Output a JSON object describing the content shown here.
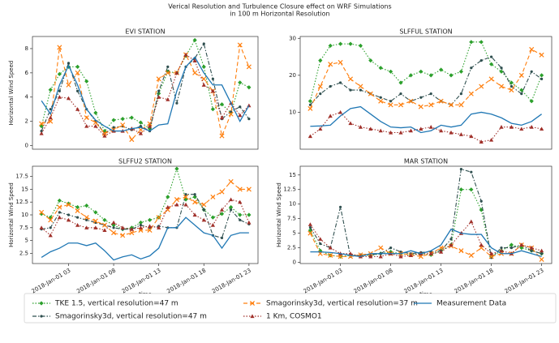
{
  "title": "Verical Resolution and Turbulence Closure effect on WRF Simulations",
  "subtitle": "in 100 m Horizontal Resolution",
  "chart_data": [
    {
      "type": "line",
      "title": "EVI STATION",
      "ylabel": "Horizontal Wind Speed",
      "x": [
        0,
        1,
        2,
        3,
        4,
        5,
        6,
        7,
        8,
        9,
        10,
        11,
        12,
        13,
        14,
        15,
        16,
        17,
        18,
        19,
        20,
        21,
        22,
        23
      ],
      "xlim": [
        -1,
        24
      ],
      "ylim": [
        -0.3,
        9
      ],
      "yticks": [
        0,
        2,
        4,
        6,
        8
      ],
      "series": [
        {
          "name": "TKE 1.5, vertical resolution=47 m",
          "color": "#2ca02c",
          "linestyle": "dotted",
          "marker": "diamond",
          "values": [
            1.6,
            4.6,
            5.9,
            6.5,
            6.5,
            5.3,
            2.7,
            1.2,
            2.1,
            2.2,
            2.3,
            1.9,
            1.4,
            4.3,
            6.1,
            6.0,
            7.4,
            8.7,
            6.5,
            3.0,
            3.4,
            2.7,
            5.2,
            4.8
          ]
        },
        {
          "name": "Smagorinsky3d, vertical resolution=47 m",
          "color": "#2f4f4f",
          "linestyle": "dashdot",
          "marker": "star",
          "values": [
            1.2,
            3.0,
            4.5,
            6.8,
            4.5,
            3.0,
            2.0,
            1.0,
            1.5,
            1.6,
            1.3,
            1.6,
            1.2,
            4.5,
            6.5,
            3.5,
            6.5,
            7.2,
            8.4,
            5.5,
            2.2,
            2.8,
            3.2,
            2.2
          ]
        },
        {
          "name": "Smagorinsky3d, vertical resolution=37 m",
          "color": "#ff7f0e",
          "linestyle": "dashed",
          "marker": "x",
          "values": [
            1.8,
            2.0,
            8.1,
            5.0,
            6.0,
            2.3,
            1.9,
            1.0,
            1.3,
            1.7,
            0.5,
            1.3,
            1.8,
            5.5,
            6.0,
            6.0,
            7.5,
            6.0,
            5.5,
            4.5,
            0.8,
            2.6,
            8.3,
            6.5
          ]
        },
        {
          "name": "1 Km, COSMO1",
          "color": "#a0302a",
          "linestyle": "dotted",
          "marker": "triangle",
          "values": [
            1.0,
            2.3,
            4.0,
            3.9,
            3.0,
            1.6,
            1.6,
            0.8,
            1.2,
            1.2,
            1.4,
            1.0,
            1.6,
            4.0,
            3.8,
            6.0,
            7.5,
            7.0,
            5.0,
            4.5,
            2.3,
            3.5,
            2.5,
            3.3
          ]
        },
        {
          "name": "Measurement Data",
          "color": "#1f77b4",
          "linestyle": "solid",
          "marker": "none",
          "values": [
            3.7,
            2.6,
            5.0,
            6.6,
            5.0,
            3.0,
            2.1,
            1.6,
            1.2,
            1.2,
            1.4,
            1.5,
            1.2,
            1.7,
            1.8,
            4.5,
            6.5,
            7.3,
            6.0,
            5.0,
            5.0,
            3.5,
            2.0,
            3.3
          ]
        }
      ]
    },
    {
      "type": "line",
      "title": "SLFFUL STATION",
      "x": [
        0,
        1,
        2,
        3,
        4,
        5,
        6,
        7,
        8,
        9,
        10,
        11,
        12,
        13,
        14,
        15,
        16,
        17,
        18,
        19,
        20,
        21,
        22,
        23
      ],
      "xlim": [
        -1,
        24
      ],
      "ylim": [
        0,
        30.5
      ],
      "yticks": [
        10,
        20,
        30
      ],
      "series": [
        {
          "name": "TKE 1.5, vertical resolution=47 m",
          "color": "#2ca02c",
          "linestyle": "dotted",
          "marker": "diamond",
          "values": [
            13,
            24,
            28,
            28.5,
            28.5,
            28,
            24,
            22,
            21,
            18,
            20,
            21,
            20,
            21.5,
            20,
            21,
            29,
            29,
            23,
            21,
            18,
            16,
            13,
            20
          ]
        },
        {
          "name": "Smagorinsky3d, vertical resolution=47 m",
          "color": "#2f4f4f",
          "linestyle": "dashdot",
          "marker": "star",
          "values": [
            12,
            15,
            17,
            18,
            16,
            16,
            15,
            14,
            13,
            15,
            13,
            14,
            15,
            13,
            12,
            15,
            22,
            24,
            25,
            22,
            17,
            15,
            21,
            19
          ]
        },
        {
          "name": "Smagorinsky3d, vertical resolution=37 m",
          "color": "#ff7f0e",
          "linestyle": "dashed",
          "marker": "x",
          "values": [
            11,
            17,
            23,
            23.5,
            19,
            17,
            15,
            13,
            12,
            12,
            13,
            11.5,
            12,
            13,
            12,
            12,
            15,
            17,
            19,
            17,
            16,
            20,
            27,
            25.5
          ]
        },
        {
          "name": "1 Km, COSMO1",
          "color": "#a0302a",
          "linestyle": "dotted",
          "marker": "triangle",
          "values": [
            3.5,
            5.5,
            9,
            10,
            7,
            6,
            5.5,
            5,
            4.5,
            4.5,
            5,
            5.5,
            6,
            5,
            4.5,
            4,
            3.5,
            2,
            2.5,
            6,
            6,
            5.5,
            6,
            5.5
          ]
        },
        {
          "name": "Measurement Data",
          "color": "#1f77b4",
          "linestyle": "solid",
          "marker": "none",
          "values": [
            6.2,
            6.3,
            6.5,
            9.0,
            11,
            11.5,
            9.5,
            7.5,
            6,
            5.8,
            6,
            4.5,
            5,
            6.5,
            6,
            6.5,
            9.5,
            10,
            9.5,
            8.5,
            7,
            6.5,
            7.5,
            9.5
          ]
        }
      ]
    },
    {
      "type": "line",
      "title": "SLFFU2 STATION",
      "ylabel": "Horizontal Wind Speed",
      "xlabel": "time",
      "x": [
        0,
        1,
        2,
        3,
        4,
        5,
        6,
        7,
        8,
        9,
        10,
        11,
        12,
        13,
        14,
        15,
        16,
        17,
        18,
        19,
        20,
        21,
        22,
        23
      ],
      "xlim": [
        -1,
        24
      ],
      "xticks": [
        {
          "value": 3,
          "label": "2018-Jan-01 03"
        },
        {
          "value": 8,
          "label": "2018-Jan-01 08"
        },
        {
          "value": 13,
          "label": "2018-Jan-01 13"
        },
        {
          "value": 18,
          "label": "2018-Jan-01 18"
        },
        {
          "value": 23,
          "label": "2018-Jan-01 23"
        }
      ],
      "ylim": [
        0.5,
        19.5
      ],
      "yticks": [
        2.5,
        5.0,
        7.5,
        10.0,
        12.5,
        15.0,
        17.5
      ],
      "series": [
        {
          "name": "TKE 1.5, vertical resolution=47 m",
          "color": "#2ca02c",
          "linestyle": "dotted",
          "marker": "diamond",
          "values": [
            10.2,
            9.5,
            12.8,
            12.2,
            11.5,
            11.8,
            10.5,
            9.0,
            8.0,
            7.2,
            7.5,
            8.5,
            9.0,
            9.5,
            13.5,
            19.0,
            13.0,
            13.5,
            11.0,
            9.5,
            10.2,
            11.5,
            10.0,
            10.0
          ]
        },
        {
          "name": "Smagorinsky3d, vertical resolution=47 m",
          "color": "#2f4f4f",
          "linestyle": "dashdot",
          "marker": "star",
          "values": [
            7.2,
            7.5,
            10.5,
            10.0,
            9.5,
            9.0,
            8.5,
            8.0,
            7.5,
            7.2,
            7.2,
            8.0,
            7.5,
            7.8,
            7.5,
            7.5,
            14.0,
            14.0,
            11.0,
            6.0,
            5.5,
            11.0,
            9.0,
            8.2
          ]
        },
        {
          "name": "Smagorinsky3d, vertical resolution=37 m",
          "color": "#ff7f0e",
          "linestyle": "dashed",
          "marker": "x",
          "values": [
            10.5,
            9.0,
            11.5,
            12.0,
            10.8,
            9.5,
            8.8,
            8.0,
            6.5,
            6.0,
            6.5,
            7.0,
            7.0,
            9.5,
            11.0,
            13.0,
            13.5,
            12.5,
            12.0,
            13.5,
            14.5,
            16.5,
            15.0,
            15.0
          ]
        },
        {
          "name": "1 Km, COSMO1",
          "color": "#a0302a",
          "linestyle": "dotted",
          "marker": "triangle",
          "values": [
            7.5,
            6.0,
            9.5,
            9.0,
            8.0,
            7.5,
            7.5,
            7.0,
            8.5,
            7.5,
            7.2,
            7.5,
            7.8,
            7.5,
            11.5,
            12.0,
            12.0,
            10.0,
            9.0,
            8.0,
            11.0,
            13.0,
            12.5,
            8.5
          ]
        },
        {
          "name": "Measurement Data",
          "color": "#1f77b4",
          "linestyle": "solid",
          "marker": "none",
          "values": [
            1.7,
            2.8,
            3.5,
            4.5,
            4.5,
            4.0,
            4.5,
            3.0,
            1.2,
            1.8,
            2.2,
            1.4,
            2.0,
            3.5,
            7.5,
            7.5,
            9.5,
            8.0,
            6.5,
            6.0,
            3.5,
            6.0,
            6.5,
            6.5
          ]
        }
      ]
    },
    {
      "type": "line",
      "title": "MAR STATION",
      "ylabel": "Horizontal Wind Speed",
      "xlabel": "time",
      "x": [
        0,
        1,
        2,
        3,
        4,
        5,
        6,
        7,
        8,
        9,
        10,
        11,
        12,
        13,
        14,
        15,
        16,
        17,
        18,
        19,
        20,
        21,
        22,
        23
      ],
      "xlim": [
        -1,
        24
      ],
      "xticks": [
        {
          "value": 3,
          "label": "2018-Jan-01 03"
        },
        {
          "value": 8,
          "label": "2018-Jan-01 08"
        },
        {
          "value": 13,
          "label": "2018-Jan-01 13"
        },
        {
          "value": 18,
          "label": "2018-Jan-01 18"
        },
        {
          "value": 23,
          "label": "2018-Jan-01 23"
        }
      ],
      "ylim": [
        -0.2,
        16.5
      ],
      "yticks": [
        0.0,
        2.5,
        5.0,
        7.5,
        10.0,
        12.5,
        15.0
      ],
      "series": [
        {
          "name": "TKE 1.5, vertical resolution=47 m",
          "color": "#2ca02c",
          "linestyle": "dotted",
          "marker": "diamond",
          "values": [
            5.5,
            2.0,
            1.2,
            1.0,
            1.2,
            1.2,
            1.2,
            1.5,
            1.8,
            1.5,
            1.3,
            1.5,
            1.3,
            2.0,
            3.0,
            12.5,
            12.5,
            9.0,
            1.0,
            2.0,
            3.0,
            2.5,
            2.0,
            1.5
          ]
        },
        {
          "name": "Smagorinsky3d, vertical resolution=47 m",
          "color": "#2f4f4f",
          "linestyle": "dashdot",
          "marker": "star",
          "values": [
            6.0,
            3.2,
            2.5,
            9.5,
            1.0,
            1.3,
            1.3,
            1.5,
            2.5,
            1.8,
            1.5,
            1.7,
            1.8,
            2.0,
            4.0,
            16.0,
            15.5,
            10.5,
            0.8,
            2.5,
            2.5,
            3.0,
            2.0,
            1.5
          ]
        },
        {
          "name": "Smagorinsky3d, vertical resolution=37 m",
          "color": "#ff7f0e",
          "linestyle": "dashed",
          "marker": "x",
          "values": [
            5.0,
            1.5,
            1.2,
            1.0,
            1.0,
            1.3,
            1.5,
            2.5,
            1.5,
            1.5,
            1.3,
            1.0,
            1.5,
            2.5,
            2.8,
            2.0,
            1.2,
            2.5,
            1.0,
            1.5,
            1.5,
            3.0,
            2.5,
            0.5
          ]
        },
        {
          "name": "1 Km, COSMO1",
          "color": "#a0302a",
          "linestyle": "dotted",
          "marker": "triangle",
          "values": [
            6.5,
            4.0,
            2.5,
            1.5,
            1.5,
            1.0,
            1.0,
            1.0,
            1.5,
            1.0,
            1.2,
            1.5,
            1.5,
            1.8,
            3.0,
            5.0,
            7.0,
            3.0,
            1.5,
            2.0,
            1.5,
            3.0,
            2.5,
            2.0
          ]
        },
        {
          "name": "Measurement Data",
          "color": "#1f77b4",
          "linestyle": "solid",
          "marker": "none",
          "values": [
            1.8,
            1.8,
            1.7,
            1.5,
            1.2,
            1.0,
            1.5,
            1.5,
            1.5,
            1.5,
            2.0,
            1.5,
            2.0,
            3.0,
            5.7,
            5.0,
            4.8,
            4.8,
            2.5,
            1.5,
            1.5,
            2.0,
            1.5,
            1.0
          ]
        }
      ]
    }
  ]
}
